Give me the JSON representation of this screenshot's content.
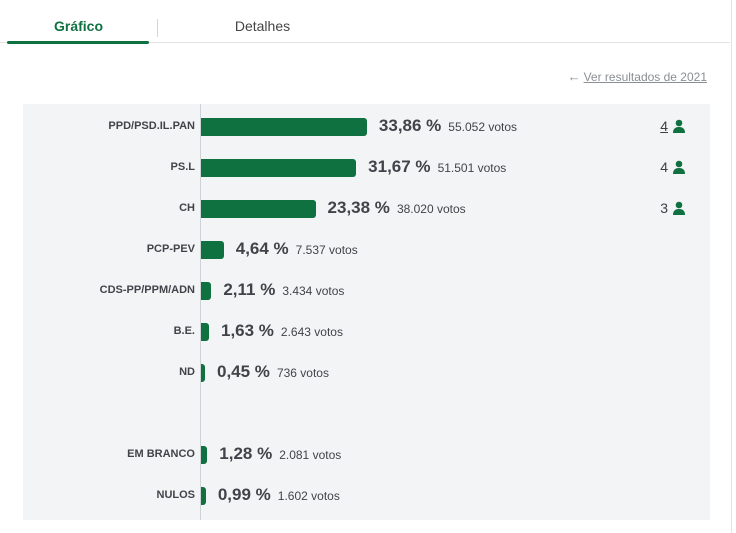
{
  "tabs": [
    {
      "label": "Gráfico",
      "active": true
    },
    {
      "label": "Detalhes",
      "active": false
    }
  ],
  "previous_results_link": "Ver resultados de 2021",
  "accent_color": "#0f7040",
  "chart_data": {
    "type": "bar",
    "orientation": "horizontal",
    "series": [
      {
        "categories": [
          "PPD/PSD.IL.PAN",
          "PS.L",
          "CH",
          "PCP-PEV",
          "CDS-PP/PPM/ADN",
          "B.E.",
          "ND",
          "EM BRANCO",
          "NULOS"
        ],
        "values": [
          33.86,
          31.67,
          23.38,
          4.64,
          2.11,
          1.63,
          0.45,
          1.28,
          0.99
        ]
      }
    ],
    "rows": [
      {
        "label": "PPD/PSD.IL.PAN",
        "pct": 33.86,
        "pct_text": "33,86 %",
        "votes_text": "55.052 votos",
        "seats": "4",
        "seats_link": true
      },
      {
        "label": "PS.L",
        "pct": 31.67,
        "pct_text": "31,67 %",
        "votes_text": "51.501 votos",
        "seats": "4",
        "seats_link": false
      },
      {
        "label": "CH",
        "pct": 23.38,
        "pct_text": "23,38 %",
        "votes_text": "38.020 votos",
        "seats": "3",
        "seats_link": false
      },
      {
        "label": "PCP-PEV",
        "pct": 4.64,
        "pct_text": "4,64 %",
        "votes_text": "7.537 votos",
        "seats": null,
        "seats_link": false
      },
      {
        "label": "CDS-PP/PPM/ADN",
        "pct": 2.11,
        "pct_text": "2,11 %",
        "votes_text": "3.434 votos",
        "seats": null,
        "seats_link": false
      },
      {
        "label": "B.E.",
        "pct": 1.63,
        "pct_text": "1,63 %",
        "votes_text": "2.643 votos",
        "seats": null,
        "seats_link": false
      },
      {
        "label": "ND",
        "pct": 0.45,
        "pct_text": "0,45 %",
        "votes_text": "736 votos",
        "seats": null,
        "seats_link": false
      },
      {
        "label": "EM BRANCO",
        "pct": 1.28,
        "pct_text": "1,28 %",
        "votes_text": "2.081 votos",
        "seats": null,
        "seats_link": false
      },
      {
        "label": "NULOS",
        "pct": 0.99,
        "pct_text": "0,99 %",
        "votes_text": "1.602 votos",
        "seats": null,
        "seats_link": false
      }
    ],
    "xlim": [
      0,
      100
    ],
    "grid": false,
    "legend": "none"
  }
}
